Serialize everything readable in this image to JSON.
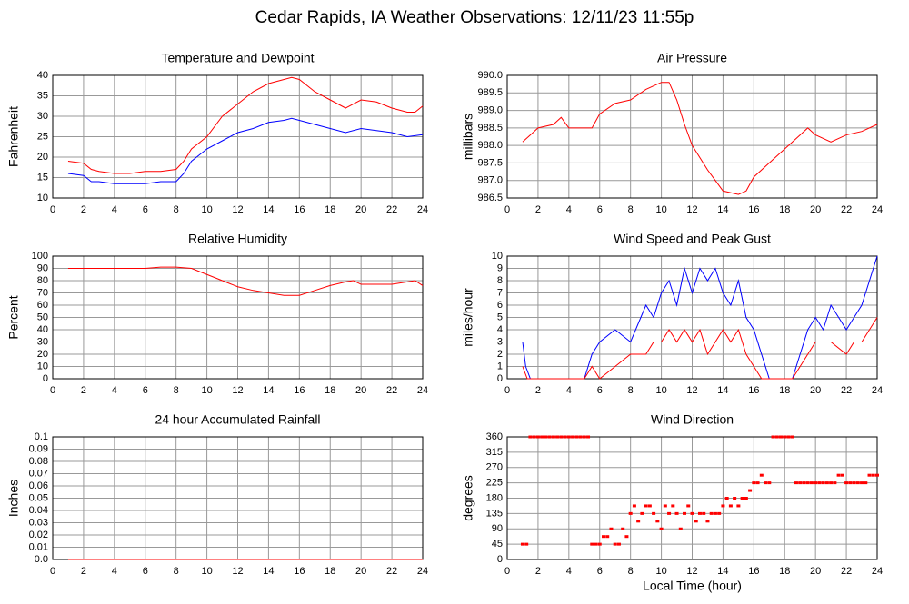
{
  "title": "Cedar Rapids, IA Weather Observations: 12/11/23 11:55p",
  "chart_data": [
    {
      "type": "line",
      "title": "Temperature and Dewpoint",
      "ylabel": "Fahrenheit",
      "grid": true,
      "xlim": [
        0,
        24
      ],
      "xticks": [
        0,
        2,
        4,
        6,
        8,
        10,
        12,
        14,
        16,
        18,
        20,
        22,
        24
      ],
      "ylim": [
        10,
        40
      ],
      "yticks": [
        10,
        15,
        20,
        25,
        30,
        35,
        40
      ],
      "series": [
        {
          "color": "#ff0000",
          "x": [
            1,
            2,
            2.5,
            3,
            4,
            5,
            6,
            7,
            8,
            8.5,
            9,
            10,
            11,
            12,
            13,
            14,
            15,
            15.5,
            16,
            17,
            18,
            19,
            20,
            21,
            22,
            23,
            23.5,
            24
          ],
          "values": [
            19,
            18.5,
            17,
            16.5,
            16,
            16,
            16.5,
            16.5,
            17,
            19,
            22,
            25,
            30,
            33,
            36,
            38,
            39,
            39.5,
            39,
            36,
            34,
            32,
            34,
            33.5,
            32,
            31,
            31,
            32.5
          ]
        },
        {
          "color": "#0000ff",
          "x": [
            1,
            2,
            2.5,
            3,
            4,
            5,
            6,
            7,
            8,
            8.5,
            9,
            10,
            11,
            12,
            13,
            14,
            15,
            15.5,
            16,
            17,
            18,
            19,
            20,
            21,
            22,
            23,
            24
          ],
          "values": [
            16,
            15.5,
            14,
            14,
            13.5,
            13.5,
            13.5,
            14,
            14,
            16,
            19,
            22,
            24,
            26,
            27,
            28.5,
            29,
            29.5,
            29,
            28,
            27,
            26,
            27,
            26.5,
            26,
            25,
            25.5
          ]
        }
      ]
    },
    {
      "type": "line",
      "title": "Air Pressure",
      "ylabel": "millibars",
      "grid": true,
      "xlim": [
        0,
        24
      ],
      "xticks": [
        0,
        2,
        4,
        6,
        8,
        10,
        12,
        14,
        16,
        18,
        20,
        22,
        24
      ],
      "ylim": [
        986.5,
        990
      ],
      "yticks": [
        986.5,
        {
          "value": 987,
          "label": "987.0"
        },
        987.5,
        {
          "value": 988,
          "label": "988.0"
        },
        988.5,
        {
          "value": 989,
          "label": "989.0"
        },
        989.5,
        {
          "value": 990,
          "label": "990.0"
        }
      ],
      "series": [
        {
          "color": "#ff0000",
          "x": [
            1,
            1.5,
            2,
            3,
            3.5,
            4,
            5,
            5.5,
            6,
            7,
            8,
            9,
            10,
            10.5,
            11,
            11.5,
            12,
            13,
            13.5,
            14,
            15,
            15.5,
            16,
            17,
            18,
            19,
            19.5,
            20,
            21,
            22,
            23,
            24
          ],
          "values": [
            988.1,
            988.3,
            988.5,
            988.6,
            988.8,
            988.5,
            988.5,
            988.5,
            988.9,
            989.2,
            989.3,
            989.6,
            989.8,
            989.8,
            989.3,
            988.6,
            988,
            987.3,
            987,
            986.7,
            986.6,
            986.7,
            987.1,
            987.5,
            987.9,
            988.3,
            988.5,
            988.3,
            988.1,
            988.3,
            988.4,
            988.6
          ]
        }
      ]
    },
    {
      "type": "line",
      "title": "Relative Humidity",
      "ylabel": "Percent",
      "grid": true,
      "xlim": [
        0,
        24
      ],
      "xticks": [
        0,
        2,
        4,
        6,
        8,
        10,
        12,
        14,
        16,
        18,
        20,
        22,
        24
      ],
      "ylim": [
        0,
        100
      ],
      "yticks": [
        0,
        10,
        20,
        30,
        40,
        50,
        60,
        70,
        80,
        90,
        100
      ],
      "series": [
        {
          "color": "#ff0000",
          "x": [
            1,
            2,
            4,
            6,
            7,
            8,
            9,
            10,
            11,
            12,
            13,
            14,
            15,
            16,
            17,
            18,
            19,
            19.5,
            20,
            21,
            22,
            23,
            23.5,
            24
          ],
          "values": [
            90,
            90,
            90,
            90,
            91,
            91,
            90,
            85,
            80,
            75,
            72,
            70,
            68,
            68,
            72,
            76,
            79,
            80,
            77,
            77,
            77,
            79,
            80,
            76
          ]
        }
      ]
    },
    {
      "type": "line",
      "title": "Wind Speed and Peak Gust",
      "ylabel": "miles/hour",
      "grid": true,
      "xlim": [
        0,
        24
      ],
      "xticks": [
        0,
        2,
        4,
        6,
        8,
        10,
        12,
        14,
        16,
        18,
        20,
        22,
        24
      ],
      "ylim": [
        0,
        10
      ],
      "yticks": [
        0,
        1,
        2,
        3,
        4,
        5,
        6,
        7,
        8,
        9,
        10
      ],
      "series": [
        {
          "color": "#0000ff",
          "x": [
            1,
            1.2,
            1.5,
            5,
            5.5,
            6,
            7,
            8,
            9,
            9.5,
            10,
            10.5,
            11,
            11.5,
            12,
            12.5,
            13,
            13.5,
            14,
            14.5,
            15,
            15.5,
            16,
            16.5,
            17,
            18.5,
            19,
            19.5,
            20,
            20.5,
            21,
            21.5,
            22,
            22.5,
            23,
            23.5,
            24
          ],
          "values": [
            3,
            1,
            0,
            0,
            2,
            3,
            4,
            3,
            6,
            5,
            7,
            8,
            6,
            9,
            7,
            9,
            8,
            9,
            7,
            6,
            8,
            5,
            4,
            2,
            0,
            0,
            2,
            4,
            5,
            4,
            6,
            5,
            4,
            5,
            6,
            8,
            10
          ]
        },
        {
          "color": "#ff0000",
          "x": [
            1,
            1.3,
            5,
            5.5,
            6,
            7,
            8,
            9,
            9.5,
            10,
            10.5,
            11,
            11.5,
            12,
            12.5,
            13,
            13.5,
            14,
            14.5,
            15,
            15.5,
            16,
            16.5,
            17,
            18.5,
            19,
            19.5,
            20,
            21,
            22,
            22.5,
            23,
            23.5,
            24
          ],
          "values": [
            1,
            0,
            0,
            1,
            0,
            1,
            2,
            2,
            3,
            3,
            4,
            3,
            4,
            3,
            4,
            2,
            3,
            4,
            3,
            4,
            2,
            1,
            0,
            0,
            0,
            1,
            2,
            3,
            3,
            2,
            3,
            3,
            4,
            5
          ]
        }
      ]
    },
    {
      "type": "line",
      "title": "24 hour Accumulated Rainfall",
      "ylabel": "Inches",
      "grid": true,
      "xlim": [
        0,
        24
      ],
      "xticks": [
        0,
        2,
        4,
        6,
        8,
        10,
        12,
        14,
        16,
        18,
        20,
        22,
        24
      ],
      "ylim": [
        0,
        0.1
      ],
      "yticks": [
        {
          "value": 0,
          "label": "0.0"
        },
        0.01,
        0.02,
        0.03,
        0.04,
        0.05,
        0.06,
        0.07,
        0.08,
        0.09,
        0.1
      ],
      "series": [
        {
          "color": "#ff0000",
          "x": [
            1,
            24
          ],
          "values": [
            0,
            0
          ]
        }
      ]
    },
    {
      "type": "scatter",
      "title": "Wind Direction",
      "ylabel": "degrees",
      "xlabel": "Local Time (hour)",
      "grid": true,
      "xlim": [
        0,
        24
      ],
      "xticks": [
        0,
        2,
        4,
        6,
        8,
        10,
        12,
        14,
        16,
        18,
        20,
        22,
        24
      ],
      "ylim": [
        0,
        360
      ],
      "yticks": [
        0,
        45,
        90,
        135,
        180,
        225,
        270,
        315,
        360
      ],
      "series": [
        {
          "color": "#ff0000",
          "x": [
            1,
            1.25,
            1.5,
            1.75,
            2,
            2.25,
            2.5,
            2.75,
            3,
            3.25,
            3.5,
            3.75,
            4,
            4.25,
            4.5,
            4.75,
            5,
            5.25,
            5.5,
            5.75,
            6,
            6.25,
            6.5,
            6.75,
            7,
            7.25,
            7.5,
            7.75,
            8,
            8.25,
            8.5,
            8.75,
            9,
            9.25,
            9.5,
            9.75,
            10,
            10.25,
            10.5,
            10.75,
            11,
            11.25,
            11.5,
            11.75,
            12,
            12.25,
            12.5,
            12.75,
            13,
            13.25,
            13.5,
            13.75,
            14,
            14.25,
            14.5,
            14.75,
            15,
            15.25,
            15.5,
            15.75,
            16,
            16.25,
            16.5,
            16.75,
            17,
            17.25,
            17.5,
            17.75,
            18,
            18.25,
            18.5,
            18.75,
            19,
            19.25,
            19.5,
            19.75,
            20,
            20.25,
            20.5,
            20.75,
            21,
            21.25,
            21.5,
            21.75,
            22,
            22.25,
            22.5,
            22.75,
            23,
            23.25,
            23.5,
            23.75,
            24
          ],
          "values": [
            45,
            45,
            360,
            360,
            360,
            360,
            360,
            360,
            360,
            360,
            360,
            360,
            360,
            360,
            360,
            360,
            360,
            360,
            45,
            45,
            45,
            67.5,
            67.5,
            90,
            45,
            45,
            90,
            67.5,
            135,
            157.5,
            112.5,
            135,
            157.5,
            157.5,
            135,
            112.5,
            90,
            157.5,
            135,
            157.5,
            135,
            90,
            135,
            157.5,
            135,
            112.5,
            135,
            135,
            112.5,
            135,
            135,
            135,
            157.5,
            180,
            157.5,
            180,
            157.5,
            180,
            180,
            202.5,
            225,
            225,
            247.5,
            225,
            225,
            360,
            360,
            360,
            360,
            360,
            360,
            225,
            225,
            225,
            225,
            225,
            225,
            225,
            225,
            225,
            225,
            225,
            247.5,
            247.5,
            225,
            225,
            225,
            225,
            225,
            225,
            247.5,
            247.5,
            247.5
          ]
        }
      ]
    }
  ]
}
